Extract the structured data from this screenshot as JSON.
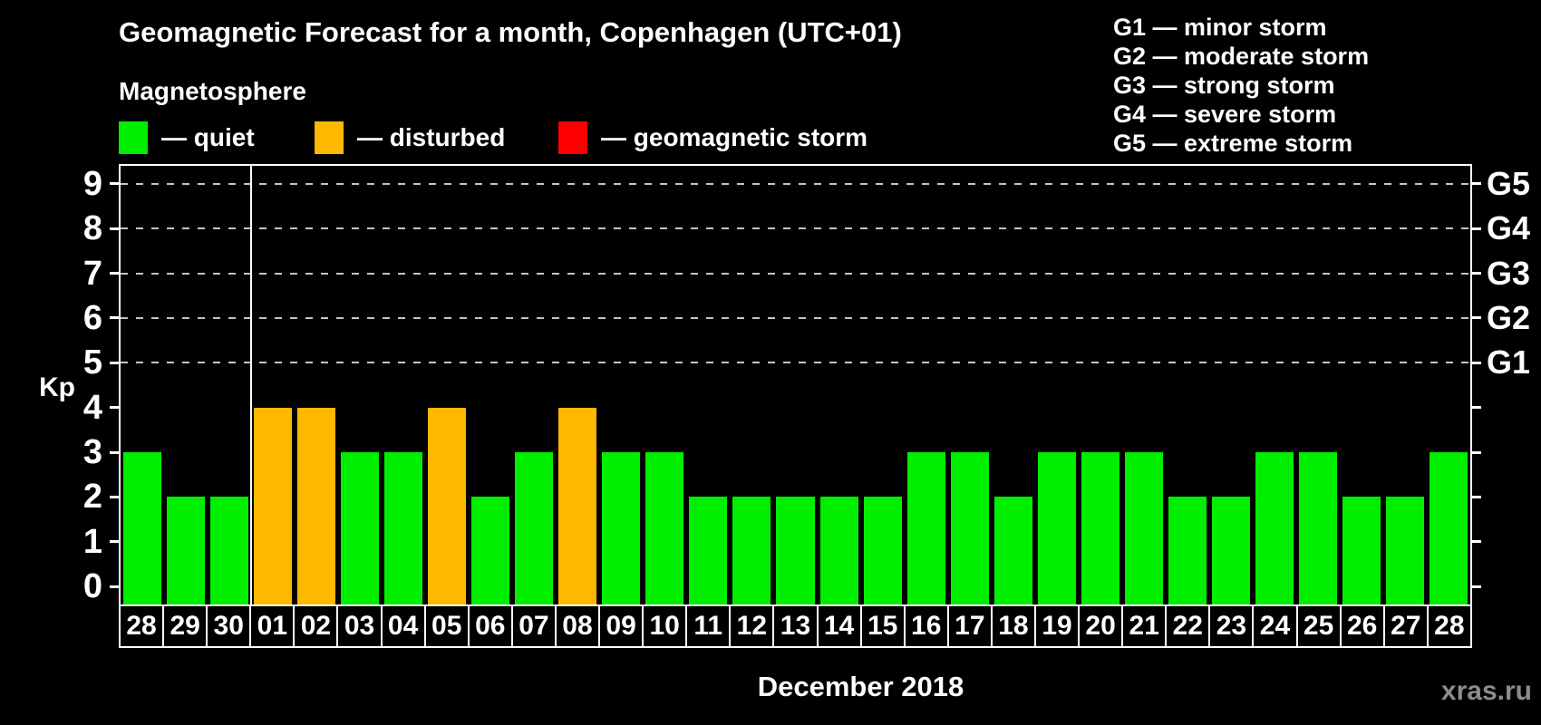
{
  "title": "Geomagnetic Forecast for a month, Copenhagen (UTC+01)",
  "magnetosphere": {
    "heading": "Magnetosphere",
    "legend": [
      {
        "name": "quiet",
        "label": "— quiet",
        "color": "#00ee00"
      },
      {
        "name": "disturbed",
        "label": "— disturbed",
        "color": "#ffb800"
      },
      {
        "name": "geomagnetic-storm",
        "label": "— geomagnetic storm",
        "color": "#ff0000"
      }
    ]
  },
  "g_scale_legend": [
    "G1 — minor storm",
    "G2 — moderate storm",
    "G3 — strong storm",
    "G4 — severe storm",
    "G5 — extreme storm"
  ],
  "watermark": "xras.ru",
  "colors": {
    "background": "#000000",
    "frame": "#ffffff",
    "gridline": "#c4c4c4",
    "quiet": "#00ee00",
    "disturbed": "#ffb800",
    "storm": "#ff0000",
    "watermark_gray": "#8c8c8c"
  },
  "chart_data": {
    "type": "bar",
    "title": "Geomagnetic Forecast for a month, Copenhagen (UTC+01)",
    "xlabel": "December 2018",
    "ylabel": "Kp",
    "ylim": [
      0,
      9
    ],
    "yticks": [
      0,
      1,
      2,
      3,
      4,
      5,
      6,
      7,
      8,
      9
    ],
    "gridlines_at": [
      5,
      6,
      7,
      8,
      9
    ],
    "grid": "horizontal dashed lines at storm levels G1–G5",
    "legend_position": "top",
    "right_axis": [
      {
        "label": "G1",
        "value": 5
      },
      {
        "label": "G2",
        "value": 6
      },
      {
        "label": "G3",
        "value": 7
      },
      {
        "label": "G4",
        "value": 8
      },
      {
        "label": "G5",
        "value": 9
      }
    ],
    "categories": [
      "28",
      "29",
      "30",
      "01",
      "02",
      "03",
      "04",
      "05",
      "06",
      "07",
      "08",
      "09",
      "10",
      "11",
      "12",
      "13",
      "14",
      "15",
      "16",
      "17",
      "18",
      "19",
      "20",
      "21",
      "22",
      "23",
      "24",
      "25",
      "26",
      "27",
      "28"
    ],
    "values": [
      3,
      2,
      2,
      4,
      4,
      3,
      3,
      4,
      2,
      3,
      4,
      3,
      3,
      2,
      2,
      2,
      2,
      2,
      3,
      3,
      2,
      3,
      3,
      3,
      2,
      2,
      3,
      3,
      2,
      2,
      3
    ],
    "statuses": [
      "quiet",
      "quiet",
      "quiet",
      "disturbed",
      "disturbed",
      "quiet",
      "quiet",
      "disturbed",
      "quiet",
      "quiet",
      "disturbed",
      "quiet",
      "quiet",
      "quiet",
      "quiet",
      "quiet",
      "quiet",
      "quiet",
      "quiet",
      "quiet",
      "quiet",
      "quiet",
      "quiet",
      "quiet",
      "quiet",
      "quiet",
      "quiet",
      "quiet",
      "quiet",
      "quiet",
      "quiet"
    ],
    "month_separator_after_index": 2
  }
}
